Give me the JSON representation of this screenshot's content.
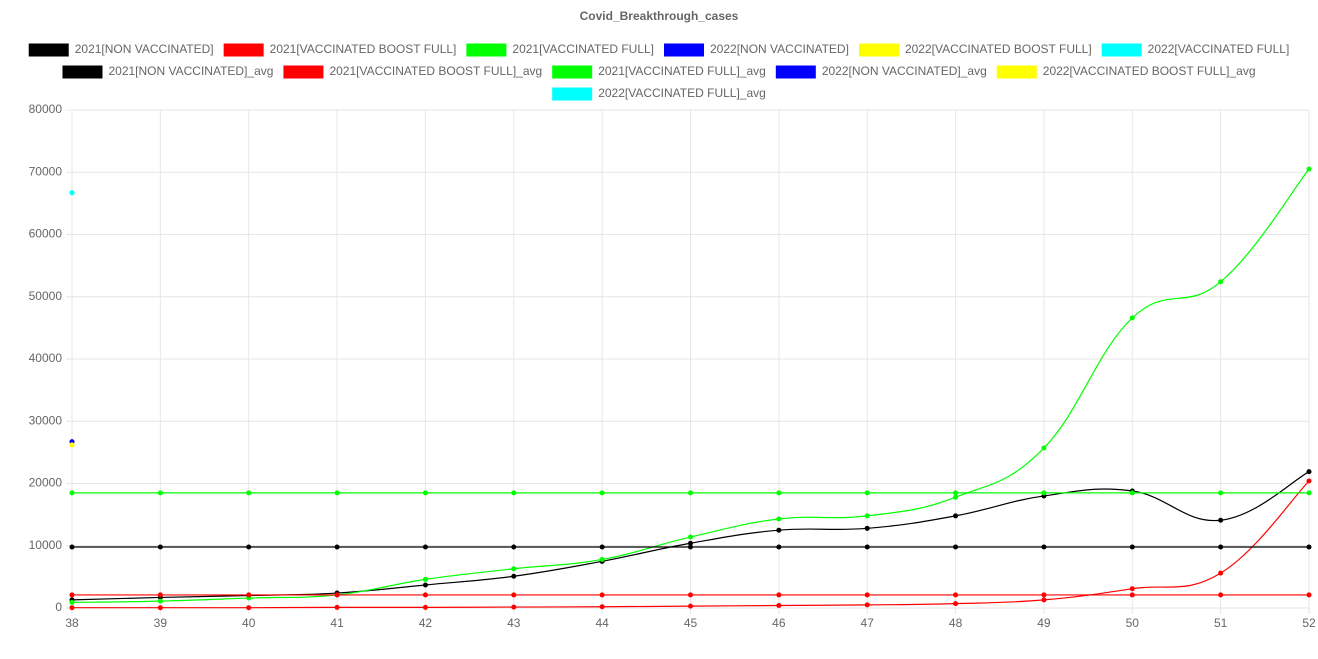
{
  "chart_data": {
    "type": "line",
    "title": "Covid_Breakthrough_cases",
    "categories": [
      38,
      39,
      40,
      41,
      42,
      43,
      44,
      45,
      46,
      47,
      48,
      49,
      50,
      51,
      52
    ],
    "ylim": [
      0,
      80000
    ],
    "yticks": [
      0,
      10000,
      20000,
      30000,
      40000,
      50000,
      60000,
      70000,
      80000
    ],
    "grid": true,
    "series": [
      {
        "name": "2021[NON VACCINATED]",
        "color": "#000000",
        "values": [
          1300,
          1700,
          2000,
          2400,
          3700,
          5100,
          7500,
          10400,
          12500,
          12800,
          14800,
          18000,
          18800,
          14100,
          21900
        ]
      },
      {
        "name": "2021[VACCINATED BOOST FULL]",
        "color": "#ff0000",
        "values": [
          50,
          50,
          50,
          100,
          100,
          150,
          200,
          300,
          400,
          500,
          700,
          1300,
          3100,
          5600,
          20400
        ]
      },
      {
        "name": "2021[VACCINATED FULL]",
        "color": "#00ff00",
        "values": [
          900,
          1100,
          1600,
          2100,
          4600,
          6300,
          7800,
          11400,
          14300,
          14800,
          17800,
          25700,
          46600,
          52400,
          70500
        ]
      },
      {
        "name": "2022[NON VACCINATED]",
        "color": "#0000ff",
        "values": [
          26700,
          null,
          null,
          null,
          null,
          null,
          null,
          null,
          null,
          null,
          null,
          null,
          null,
          null,
          null
        ]
      },
      {
        "name": "2022[VACCINATED BOOST FULL]",
        "color": "#ffff00",
        "values": [
          26200,
          null,
          null,
          null,
          null,
          null,
          null,
          null,
          null,
          null,
          null,
          null,
          null,
          null,
          null
        ]
      },
      {
        "name": "2022[VACCINATED FULL]",
        "color": "#00ffff",
        "values": [
          66700,
          null,
          null,
          null,
          null,
          null,
          null,
          null,
          null,
          null,
          null,
          null,
          null,
          null,
          null
        ]
      },
      {
        "name": "2021[NON VACCINATED]_avg",
        "color": "#000000",
        "values": [
          9800,
          9800,
          9800,
          9800,
          9800,
          9800,
          9800,
          9800,
          9800,
          9800,
          9800,
          9800,
          9800,
          9800,
          9800
        ]
      },
      {
        "name": "2021[VACCINATED BOOST FULL]_avg",
        "color": "#ff0000",
        "values": [
          2100,
          2100,
          2100,
          2100,
          2100,
          2100,
          2100,
          2100,
          2100,
          2100,
          2100,
          2100,
          2100,
          2100,
          2100
        ]
      },
      {
        "name": "2021[VACCINATED FULL]_avg",
        "color": "#00ff00",
        "values": [
          18500,
          18500,
          18500,
          18500,
          18500,
          18500,
          18500,
          18500,
          18500,
          18500,
          18500,
          18500,
          18500,
          18500,
          18500
        ]
      },
      {
        "name": "2022[NON VACCINATED]_avg",
        "color": "#0000ff",
        "values": [
          26700,
          null,
          null,
          null,
          null,
          null,
          null,
          null,
          null,
          null,
          null,
          null,
          null,
          null,
          null
        ]
      },
      {
        "name": "2022[VACCINATED BOOST FULL]_avg",
        "color": "#ffff00",
        "values": [
          26200,
          null,
          null,
          null,
          null,
          null,
          null,
          null,
          null,
          null,
          null,
          null,
          null,
          null,
          null
        ]
      },
      {
        "name": "2022[VACCINATED FULL]_avg",
        "color": "#00ffff",
        "values": [
          66700,
          null,
          null,
          null,
          null,
          null,
          null,
          null,
          null,
          null,
          null,
          null,
          null,
          null,
          null
        ]
      }
    ]
  }
}
